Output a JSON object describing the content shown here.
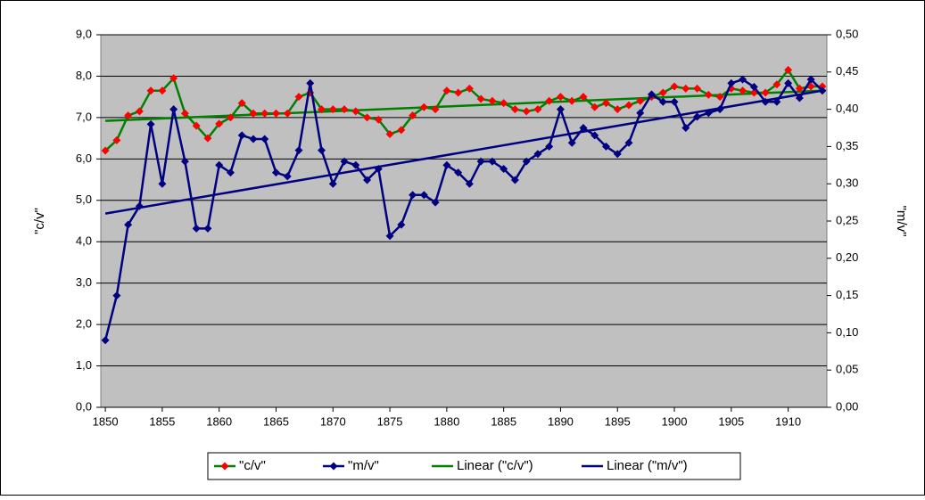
{
  "chart_data": {
    "type": "line",
    "y_label": "\"c/v\"",
    "y2_label": "\"m/v\"",
    "x": [
      1850,
      1851,
      1852,
      1853,
      1854,
      1855,
      1856,
      1857,
      1858,
      1859,
      1860,
      1861,
      1862,
      1863,
      1864,
      1865,
      1866,
      1867,
      1868,
      1869,
      1870,
      1871,
      1872,
      1873,
      1874,
      1875,
      1876,
      1877,
      1878,
      1879,
      1880,
      1881,
      1882,
      1883,
      1884,
      1885,
      1886,
      1887,
      1888,
      1889,
      1890,
      1891,
      1892,
      1893,
      1894,
      1895,
      1896,
      1897,
      1898,
      1899,
      1900,
      1901,
      1902,
      1903,
      1904,
      1905,
      1906,
      1907,
      1908,
      1909,
      1910,
      1911,
      1912,
      1913
    ],
    "xlim": [
      1849.6,
      1913.4
    ],
    "xticks": [
      1850,
      1855,
      1860,
      1865,
      1870,
      1875,
      1880,
      1885,
      1890,
      1895,
      1900,
      1905,
      1910
    ],
    "ylim": [
      0,
      9
    ],
    "yticks": [
      {
        "value": 0,
        "label": "0,0"
      },
      {
        "value": 1,
        "label": "1,0"
      },
      {
        "value": 2,
        "label": "2,0"
      },
      {
        "value": 3,
        "label": "3,0"
      },
      {
        "value": 4,
        "label": "4,0"
      },
      {
        "value": 5,
        "label": "5,0"
      },
      {
        "value": 6,
        "label": "6,0"
      },
      {
        "value": 7,
        "label": "7,0"
      },
      {
        "value": 8,
        "label": "8,0"
      },
      {
        "value": 9,
        "label": "9,0"
      }
    ],
    "y2lim": [
      0,
      0.5
    ],
    "y2ticks": [
      {
        "value": 0,
        "label": "0,00"
      },
      {
        "value": 0.05,
        "label": "0,05"
      },
      {
        "value": 0.1,
        "label": "0,10"
      },
      {
        "value": 0.15,
        "label": "0,15"
      },
      {
        "value": 0.2,
        "label": "0,20"
      },
      {
        "value": 0.25,
        "label": "0,25"
      },
      {
        "value": 0.3,
        "label": "0,30"
      },
      {
        "value": 0.35,
        "label": "0,35"
      },
      {
        "value": 0.4,
        "label": "0,40"
      },
      {
        "value": 0.45,
        "label": "0,45"
      },
      {
        "value": 0.5,
        "label": "0,50"
      }
    ],
    "grid": true,
    "series": [
      {
        "name": "\"c/v\"",
        "color": "#008000",
        "marker_color": "#ff0000",
        "values": [
          6.2,
          6.45,
          7.05,
          7.15,
          7.65,
          7.65,
          7.95,
          7.1,
          6.8,
          6.5,
          6.85,
          7.0,
          7.35,
          7.1,
          7.1,
          7.1,
          7.1,
          7.5,
          7.6,
          7.2,
          7.2,
          7.2,
          7.15,
          7.0,
          6.95,
          6.6,
          6.7,
          7.05,
          7.25,
          7.2,
          7.65,
          7.6,
          7.7,
          7.45,
          7.4,
          7.35,
          7.2,
          7.15,
          7.2,
          7.4,
          7.5,
          7.4,
          7.5,
          7.25,
          7.35,
          7.2,
          7.3,
          7.4,
          7.5,
          7.6,
          7.75,
          7.7,
          7.7,
          7.55,
          7.5,
          7.7,
          7.65,
          7.6,
          7.6,
          7.8,
          8.15,
          7.7,
          7.75,
          7.75
        ]
      },
      {
        "name": "\"m/v\"",
        "color": "#000080",
        "marker_color": "#000080",
        "axis": "y2",
        "values": [
          0.09,
          0.15,
          0.245,
          0.27,
          0.38,
          0.3,
          0.4,
          0.33,
          0.24,
          0.24,
          0.325,
          0.315,
          0.365,
          0.36,
          0.36,
          0.315,
          0.31,
          0.345,
          0.435,
          0.345,
          0.3,
          0.33,
          0.325,
          0.305,
          0.32,
          0.23,
          0.245,
          0.285,
          0.285,
          0.275,
          0.325,
          0.315,
          0.3,
          0.33,
          0.33,
          0.32,
          0.305,
          0.33,
          0.34,
          0.35,
          0.4,
          0.355,
          0.375,
          0.365,
          0.35,
          0.34,
          0.355,
          0.395,
          0.42,
          0.41,
          0.41,
          0.375,
          0.39,
          0.395,
          0.4,
          0.435,
          0.44,
          0.43,
          0.41,
          0.41,
          0.435,
          0.415,
          0.44,
          0.425
        ]
      }
    ],
    "trendlines": [
      {
        "name": "Linear (\"c/v\")",
        "color": "#008000",
        "x": [
          1850,
          1913
        ],
        "values": [
          6.92,
          7.65
        ]
      },
      {
        "name": "Linear (\"m/v\")",
        "color": "#000080",
        "axis": "y2",
        "x": [
          1850,
          1913
        ],
        "values": [
          0.26,
          0.425
        ]
      }
    ],
    "legend": "bottom"
  }
}
